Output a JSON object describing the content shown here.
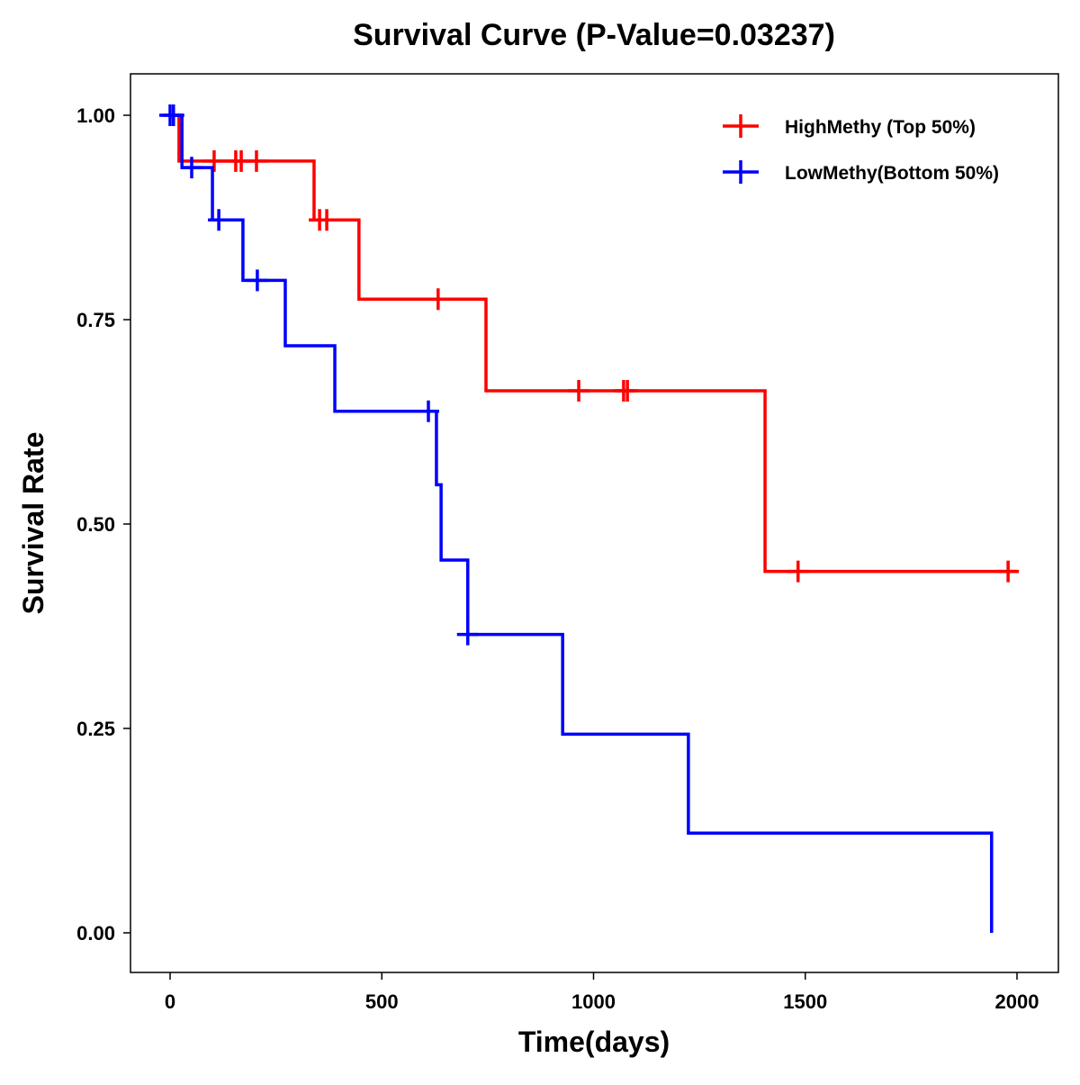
{
  "chart_data": {
    "type": "line",
    "subtype": "kaplan-meier step",
    "title": "Survival Curve (P-Value=0.03237)",
    "xlabel": "Time(days)",
    "ylabel": "Survival Rate",
    "xlim": [
      -90,
      2100
    ],
    "ylim": [
      -0.05,
      1.05
    ],
    "xticks": [
      0,
      500,
      1000,
      1500,
      2000
    ],
    "xtick_labels": [
      "0",
      "500",
      "1000",
      "1500",
      "2000"
    ],
    "yticks": [
      0,
      0.25,
      0.5,
      0.75,
      1
    ],
    "ytick_labels": [
      "0.00",
      "0.25",
      "0.50",
      "0.75",
      "1.00"
    ],
    "grid": false,
    "legend_position": "top-right",
    "series": [
      {
        "name": "HighMethy (Top 50%)",
        "color": "#FF0000",
        "steps": [
          [
            0,
            1.0
          ],
          [
            21,
            0.944
          ],
          [
            340,
            0.872
          ],
          [
            446,
            0.775
          ],
          [
            746,
            0.663
          ],
          [
            1405,
            0.442
          ],
          [
            2000,
            0.442
          ]
        ],
        "censored": [
          [
            104,
            0.944
          ],
          [
            155,
            0.944
          ],
          [
            168,
            0.944
          ],
          [
            204,
            0.944
          ],
          [
            353,
            0.872
          ],
          [
            370,
            0.872
          ],
          [
            633,
            0.775
          ],
          [
            965,
            0.663
          ],
          [
            1071,
            0.663
          ],
          [
            1080,
            0.663
          ],
          [
            1483,
            0.442
          ],
          [
            1979,
            0.442
          ]
        ]
      },
      {
        "name": "LowMethy(Bottom 50%)",
        "color": "#0000FF",
        "steps": [
          [
            0,
            1.0
          ],
          [
            28,
            0.936
          ],
          [
            100,
            0.872
          ],
          [
            172,
            0.798
          ],
          [
            272,
            0.718
          ],
          [
            389,
            0.638
          ],
          [
            629,
            0.548
          ],
          [
            640,
            0.456
          ],
          [
            703,
            0.365
          ],
          [
            927,
            0.243
          ],
          [
            1224,
            0.122
          ],
          [
            1940,
            0.0
          ]
        ],
        "censored": [
          [
            0,
            1.0
          ],
          [
            8,
            1.0
          ],
          [
            51,
            0.936
          ],
          [
            115,
            0.872
          ],
          [
            206,
            0.798
          ],
          [
            610,
            0.638
          ],
          [
            703,
            0.365
          ]
        ]
      }
    ]
  }
}
